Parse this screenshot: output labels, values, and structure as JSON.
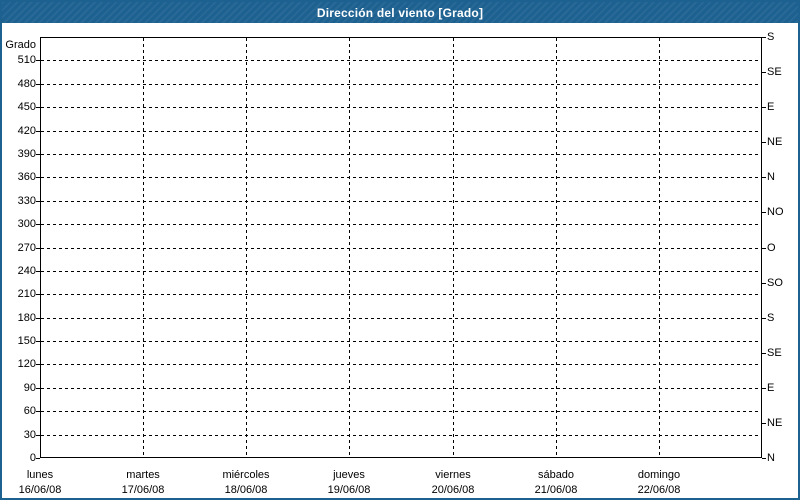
{
  "window": {
    "title": "Dirección del viento [Grado]"
  },
  "colors": {
    "titlebar_bg": "#1d6191",
    "border": "#1d6191",
    "title_text": "#ffffff",
    "plot_bg": "#ffffff",
    "grid": "#000000",
    "text": "#000000"
  },
  "chart_data": {
    "type": "line",
    "title": "Dirección del viento [Grado]",
    "ylabel": "Grado",
    "xlabel": "",
    "ylim": [
      0,
      540
    ],
    "y_tick_step": 30,
    "y_ticks": [
      0,
      30,
      60,
      90,
      120,
      150,
      180,
      210,
      240,
      270,
      300,
      330,
      360,
      390,
      420,
      450,
      480,
      510
    ],
    "right_axis_ticks": [
      {
        "value": 540,
        "label": "S"
      },
      {
        "value": 495,
        "label": "SE"
      },
      {
        "value": 450,
        "label": "E"
      },
      {
        "value": 405,
        "label": "NE"
      },
      {
        "value": 360,
        "label": "N"
      },
      {
        "value": 315,
        "label": "NO"
      },
      {
        "value": 270,
        "label": "O"
      },
      {
        "value": 225,
        "label": "SO"
      },
      {
        "value": 180,
        "label": "S"
      },
      {
        "value": 135,
        "label": "SE"
      },
      {
        "value": 90,
        "label": "E"
      },
      {
        "value": 45,
        "label": "NE"
      },
      {
        "value": 0,
        "label": "N"
      }
    ],
    "x_categories": [
      {
        "day": "lunes",
        "date": "16/06/08"
      },
      {
        "day": "martes",
        "date": "17/06/08"
      },
      {
        "day": "miércoles",
        "date": "18/06/08"
      },
      {
        "day": "jueves",
        "date": "19/06/08"
      },
      {
        "day": "viernes",
        "date": "20/06/08"
      },
      {
        "day": "sábado",
        "date": "21/06/08"
      },
      {
        "day": "domingo",
        "date": "22/06/08"
      }
    ],
    "grid": "dashed",
    "legend": "none",
    "series": []
  }
}
